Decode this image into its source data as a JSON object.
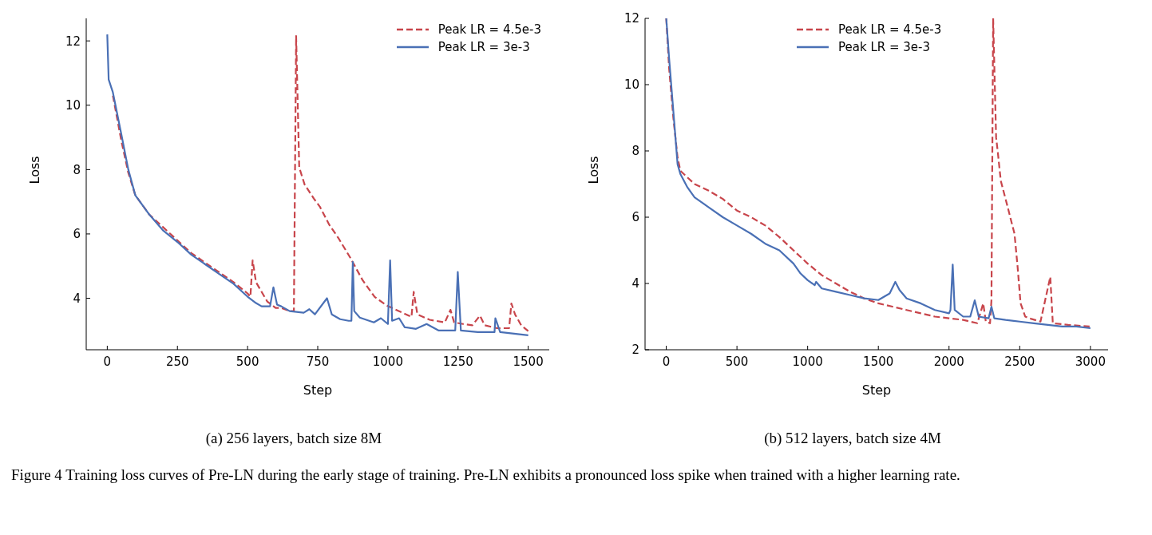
{
  "chart_data": [
    {
      "type": "line",
      "xlabel": "Step",
      "ylabel": "Loss",
      "xlim": [
        -75,
        1575
      ],
      "ylim": [
        2.4,
        12.7
      ],
      "xticks": [
        0,
        250,
        500,
        750,
        1000,
        1250,
        1500
      ],
      "yticks": [
        4,
        6,
        8,
        10,
        12
      ],
      "legend": "top right",
      "annotations": [
        "(a)  256 layers, batch size 8M"
      ],
      "series": [
        {
          "name": "Peak LR = 4.5e-3",
          "color": "#c8454b",
          "line_style": "dashed",
          "x": [
            20,
            50,
            75,
            100,
            150,
            200,
            250,
            300,
            350,
            400,
            450,
            500,
            510,
            518,
            530,
            550,
            570,
            600,
            620,
            650,
            665,
            673,
            684,
            703,
            736,
            758,
            790,
            823,
            866,
            910,
            953,
            997,
            1040,
            1084,
            1092,
            1105,
            1149,
            1203,
            1223,
            1236,
            1268,
            1301,
            1328,
            1345,
            1389,
            1432,
            1440,
            1453,
            1475,
            1500
          ],
          "values": [
            10.3,
            8.9,
            7.9,
            7.2,
            6.6,
            6.2,
            5.8,
            5.4,
            5.1,
            4.8,
            4.5,
            4.15,
            4.05,
            5.18,
            4.5,
            4.2,
            3.9,
            3.7,
            3.7,
            3.6,
            3.6,
            12.15,
            8.07,
            7.54,
            7.1,
            6.84,
            6.3,
            5.88,
            5.26,
            4.56,
            4.04,
            3.77,
            3.6,
            3.42,
            4.2,
            3.5,
            3.33,
            3.25,
            3.64,
            3.25,
            3.2,
            3.16,
            3.46,
            3.16,
            3.07,
            3.07,
            3.84,
            3.5,
            3.16,
            2.98
          ]
        },
        {
          "name": "Peak LR = 3e-3",
          "color": "#4a70b5",
          "line_style": "solid",
          "x": [
            0,
            5,
            20,
            50,
            75,
            100,
            150,
            200,
            250,
            300,
            350,
            400,
            450,
            500,
            530,
            550,
            580,
            592,
            605,
            620,
            650,
            700,
            720,
            740,
            783,
            800,
            830,
            860,
            870,
            875,
            880,
            900,
            950,
            975,
            1000,
            1008,
            1015,
            1040,
            1060,
            1100,
            1138,
            1180,
            1240,
            1249,
            1260,
            1320,
            1380,
            1383,
            1400,
            1450,
            1500
          ],
          "values": [
            12.2,
            10.8,
            10.4,
            9.1,
            8.0,
            7.2,
            6.6,
            6.1,
            5.75,
            5.35,
            5.05,
            4.75,
            4.45,
            4.05,
            3.85,
            3.75,
            3.75,
            4.34,
            3.8,
            3.75,
            3.6,
            3.55,
            3.66,
            3.5,
            4.0,
            3.5,
            3.35,
            3.3,
            3.3,
            5.13,
            3.6,
            3.4,
            3.25,
            3.38,
            3.2,
            5.18,
            3.3,
            3.38,
            3.1,
            3.05,
            3.2,
            3.0,
            3.0,
            4.82,
            3.0,
            2.95,
            2.95,
            3.38,
            2.95,
            2.9,
            2.85
          ]
        }
      ]
    },
    {
      "type": "line",
      "xlabel": "Step",
      "ylabel": "Loss",
      "xlim": [
        -150,
        3125
      ],
      "ylim": [
        2,
        12
      ],
      "xticks": [
        0,
        500,
        1000,
        1500,
        2000,
        2500,
        3000
      ],
      "yticks": [
        2,
        4,
        6,
        8,
        10,
        12
      ],
      "legend": "top",
      "annotations": [
        "(b)  512 layers, batch size 4M",
        "Figure 4  Training loss curves of Pre-LN during the early stage of training. Pre-LN exhibits a pronounced loss spike when trained with a higher learning rate."
      ],
      "series": [
        {
          "name": "Peak LR = 4.5e-3",
          "color": "#c8454b",
          "line_style": "dashed",
          "x": [
            0,
            20,
            50,
            80,
            100,
            150,
            200,
            300,
            400,
            500,
            600,
            700,
            800,
            900,
            1000,
            1100,
            1200,
            1300,
            1400,
            1500,
            1600,
            1700,
            1800,
            1900,
            2000,
            2100,
            2200,
            2242,
            2260,
            2290,
            2300,
            2312,
            2333,
            2344,
            2366,
            2409,
            2463,
            2485,
            2506,
            2539,
            2582,
            2647,
            2716,
            2734,
            2842,
            2994
          ],
          "values": [
            12,
            10.5,
            9,
            7.8,
            7.4,
            7.2,
            7.0,
            6.8,
            6.55,
            6.2,
            6.0,
            5.75,
            5.4,
            5.0,
            4.6,
            4.25,
            4.0,
            3.75,
            3.55,
            3.4,
            3.3,
            3.2,
            3.1,
            3.0,
            2.95,
            2.9,
            2.8,
            3.4,
            2.85,
            2.8,
            3.5,
            12,
            8.4,
            8.0,
            7.1,
            6.4,
            5.5,
            4.5,
            3.4,
            3.0,
            2.93,
            2.85,
            4.2,
            2.8,
            2.75,
            2.7
          ]
        },
        {
          "name": "Peak LR = 3e-3",
          "color": "#4a70b5",
          "line_style": "solid",
          "x": [
            0,
            20,
            50,
            80,
            100,
            150,
            200,
            300,
            400,
            500,
            600,
            700,
            800,
            900,
            950,
            1000,
            1050,
            1060,
            1100,
            1200,
            1300,
            1400,
            1500,
            1580,
            1620,
            1650,
            1700,
            1800,
            1900,
            2000,
            2010,
            2026,
            2040,
            2100,
            2150,
            2182,
            2210,
            2280,
            2300,
            2320,
            2400,
            2500,
            2600,
            2700,
            2800,
            2900,
            3000
          ],
          "values": [
            12,
            10.8,
            9.2,
            7.6,
            7.3,
            6.9,
            6.6,
            6.3,
            6.0,
            5.75,
            5.5,
            5.2,
            5.0,
            4.6,
            4.3,
            4.1,
            3.95,
            4.05,
            3.85,
            3.75,
            3.65,
            3.55,
            3.5,
            3.7,
            4.05,
            3.8,
            3.55,
            3.4,
            3.2,
            3.1,
            3.2,
            4.57,
            3.2,
            3.0,
            3.0,
            3.49,
            3.0,
            2.95,
            3.3,
            2.95,
            2.9,
            2.85,
            2.8,
            2.75,
            2.7,
            2.7,
            2.65
          ]
        }
      ]
    }
  ]
}
